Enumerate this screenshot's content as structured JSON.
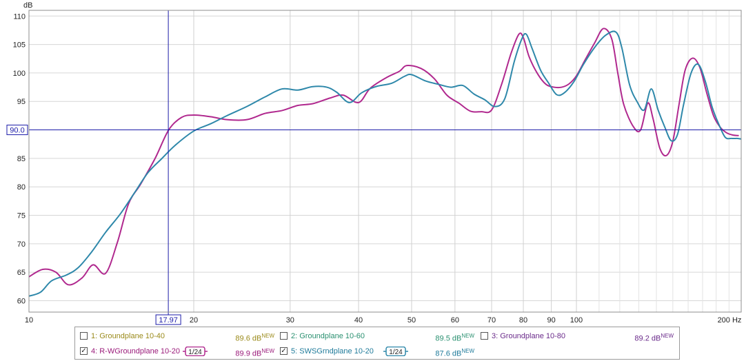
{
  "chart_data": {
    "type": "line",
    "x_scale": "log",
    "xlim": [
      10,
      200
    ],
    "ylim": [
      58,
      111
    ],
    "ylabel": "dB",
    "xunit": "Hz",
    "y_ticks": [
      60,
      65,
      70,
      75,
      80,
      85,
      90,
      95,
      100,
      105,
      110
    ],
    "x_ticks": [
      10,
      20,
      30,
      40,
      50,
      60,
      70,
      80,
      90,
      100,
      200
    ],
    "x_tick_labels": [
      "10",
      "20",
      "30",
      "40",
      "50",
      "60",
      "70",
      "80",
      "90",
      "100",
      "200 Hz"
    ],
    "x_minor_ticks": [
      110,
      120,
      130,
      140,
      150,
      160,
      170,
      180,
      190
    ],
    "grid": true,
    "cursor": {
      "x": 17.97,
      "y": 90.0,
      "x_label": "17.97",
      "y_label": "90.0"
    },
    "series": [
      {
        "name": "4: R-WGroundplane 10-20",
        "color": "#b0288e",
        "x": [
          10,
          10.6,
          11.2,
          11.8,
          12.5,
          13.1,
          13.8,
          14.5,
          15.2,
          16.0,
          17.0,
          18.0,
          19.0,
          20.0,
          21.5,
          23.0,
          25.0,
          27.0,
          29.0,
          31.0,
          33.0,
          35.5,
          37.5,
          40.0,
          42.0,
          45.0,
          47.5,
          49.0,
          52.0,
          55.0,
          58.0,
          61.0,
          64.0,
          67.0,
          70.0,
          73.0,
          76.0,
          78.5,
          80.0,
          82.0,
          85.0,
          88.0,
          91.0,
          94.0,
          97.0,
          100.0,
          104.0,
          108.0,
          112.0,
          116.0,
          119.0,
          122.0,
          127.0,
          131.0,
          135.0,
          138.0,
          142.0,
          146.0,
          150.0,
          154.0,
          158.0,
          163.0,
          168.0,
          173.0,
          178.0,
          183.0,
          188.0,
          193.0,
          198.0
        ],
        "values": [
          64.2,
          65.5,
          65.0,
          62.8,
          64.0,
          66.3,
          64.8,
          70.2,
          77.0,
          80.5,
          85.0,
          90.0,
          92.2,
          92.6,
          92.3,
          91.8,
          91.8,
          92.9,
          93.4,
          94.3,
          94.6,
          95.6,
          96.1,
          94.8,
          97.3,
          99.2,
          100.3,
          101.3,
          100.8,
          99.0,
          96.1,
          94.7,
          93.3,
          93.2,
          93.5,
          98.0,
          103.5,
          106.8,
          106.2,
          102.8,
          99.8,
          98.0,
          97.5,
          97.5,
          98.1,
          99.5,
          102.5,
          105.3,
          107.8,
          106.0,
          100.0,
          94.5,
          90.6,
          90.0,
          94.7,
          92.0,
          86.8,
          85.5,
          88.0,
          94.5,
          100.5,
          102.6,
          101.0,
          96.5,
          92.5,
          90.5,
          89.5,
          89.1,
          89.0
        ]
      },
      {
        "name": "5: SWSGrndplane 10-20",
        "color": "#2e88aa",
        "x": [
          10,
          10.5,
          11.0,
          11.7,
          12.3,
          13.0,
          13.8,
          14.7,
          15.6,
          16.5,
          17.5,
          18.5,
          20.0,
          21.5,
          23.0,
          25.0,
          27.0,
          29.0,
          31.0,
          33.0,
          35.0,
          36.5,
          38.5,
          40.5,
          43.0,
          46.0,
          48.5,
          50.0,
          53.0,
          56.0,
          59.0,
          62.0,
          65.0,
          68.0,
          71.0,
          74.0,
          77.0,
          79.5,
          81.0,
          83.0,
          86.0,
          89.0,
          92.0,
          95.0,
          99.0,
          103.0,
          108.0,
          113.0,
          118.0,
          121.0,
          125.0,
          129.0,
          133.0,
          137.0,
          141.0,
          145.0,
          149.0,
          153.0,
          157.0,
          162.0,
          167.0,
          172.0,
          177.0,
          182.0,
          187.0,
          192.0,
          197.0,
          200.0
        ],
        "values": [
          60.8,
          61.5,
          63.5,
          64.5,
          65.8,
          68.5,
          72.0,
          75.3,
          79.0,
          82.5,
          85.0,
          87.3,
          89.8,
          91.1,
          92.5,
          94.1,
          95.8,
          97.2,
          97.0,
          97.6,
          97.5,
          96.6,
          94.8,
          96.5,
          97.6,
          98.2,
          99.4,
          99.7,
          98.6,
          98.0,
          97.5,
          97.8,
          96.3,
          95.3,
          94.1,
          95.5,
          102.0,
          106.0,
          106.8,
          104.3,
          100.5,
          98.2,
          96.2,
          96.5,
          98.5,
          101.5,
          104.5,
          106.6,
          107.2,
          104.5,
          98.0,
          95.0,
          93.5,
          97.2,
          93.5,
          90.5,
          88.1,
          89.2,
          94.5,
          100.0,
          101.5,
          98.5,
          94.0,
          91.0,
          88.7,
          88.5,
          88.5,
          88.4
        ]
      }
    ]
  },
  "legend": {
    "items": [
      {
        "number_label": "1: Groundplane 10-40",
        "checked": false,
        "color": "#9a8a1a",
        "value": "89.6 dB",
        "badge": "NEW",
        "smoothing": ""
      },
      {
        "number_label": "2: Groundplane 10-60",
        "checked": false,
        "color": "#2a9070",
        "value": "89.5 dB",
        "badge": "NEW",
        "smoothing": ""
      },
      {
        "number_label": "3: Groundplane 10-80",
        "checked": false,
        "color": "#6a2a8a",
        "value": "89.2 dB",
        "badge": "NEW",
        "smoothing": ""
      },
      {
        "number_label": "4: R-WGroundplane 10-20",
        "checked": true,
        "color": "#9a1a7a",
        "value": "89.9 dB",
        "badge": "NEW",
        "smoothing": "1/24"
      },
      {
        "number_label": "5: SWSGrndplane 10-20",
        "checked": true,
        "color": "#1e7a9a",
        "value": "87.6 dB",
        "badge": "NEW",
        "smoothing": "1/24"
      }
    ],
    "check_mark": "✓"
  }
}
